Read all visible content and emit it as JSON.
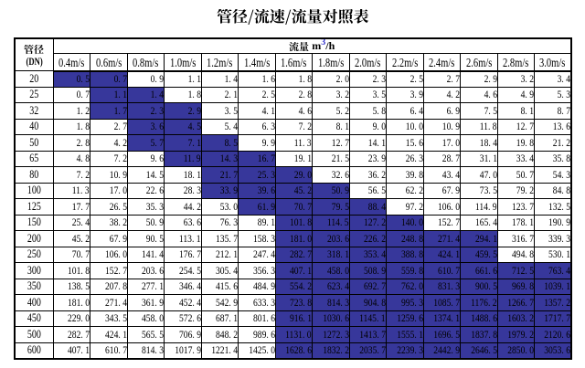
{
  "title": "管径/流速/流量对照表",
  "colors": {
    "highlight": "#37379B",
    "grid": "#000000",
    "text": "#000000",
    "background": "#FFFFFF",
    "flow_sup_blue": "#3333CC"
  },
  "header": {
    "pipe_label": "管径",
    "pipe_sub": "(DN)",
    "flow_label": "流量",
    "flow_unit_base": "m",
    "flow_unit_sup": "3",
    "flow_unit_rest": "/h",
    "velocity_columns": [
      "0.4m/s",
      "0.6m/s",
      "0.8m/s",
      "1.0m/s",
      "1.2m/s",
      "1.4m/s",
      "1.6m/s",
      "1.8m/s",
      "2.0m/s",
      "2.2m/s",
      "2.4m/s",
      "2.6m/s",
      "2.8m/s",
      "3.0m/s"
    ]
  },
  "table": {
    "rows": [
      {
        "dn": "20",
        "values": [
          "0.5",
          "0.7",
          "0.9",
          "1.1",
          "1.4",
          "1.6",
          "1.8",
          "2.0",
          "2.3",
          "2.5",
          "2.7",
          "2.9",
          "3.2",
          "3.4"
        ],
        "highlight": [
          0,
          1
        ]
      },
      {
        "dn": "25",
        "values": [
          "0.7",
          "1.1",
          "1.4",
          "1.8",
          "2.1",
          "2.5",
          "2.8",
          "3.2",
          "3.5",
          "3.9",
          "4.2",
          "4.6",
          "4.9",
          "5.3"
        ],
        "highlight": [
          1,
          2
        ]
      },
      {
        "dn": "32",
        "values": [
          "1.2",
          "1.7",
          "2.3",
          "2.9",
          "3.5",
          "4.1",
          "4.6",
          "5.2",
          "5.8",
          "6.4",
          "6.9",
          "7.5",
          "8.1",
          "8.7"
        ],
        "highlight": [
          1,
          3
        ]
      },
      {
        "dn": "40",
        "values": [
          "1.8",
          "2.7",
          "3.6",
          "4.5",
          "5.4",
          "6.3",
          "7.2",
          "8.1",
          "9.0",
          "10.0",
          "10.9",
          "11.8",
          "12.7",
          "13.6"
        ],
        "highlight": [
          2,
          3
        ]
      },
      {
        "dn": "50",
        "values": [
          "2.8",
          "4.2",
          "5.7",
          "7.1",
          "8.5",
          "9.9",
          "11.3",
          "12.7",
          "14.1",
          "15.6",
          "17.0",
          "18.4",
          "19.8",
          "21.2"
        ],
        "highlight": [
          2,
          4
        ]
      },
      {
        "dn": "65",
        "values": [
          "4.8",
          "7.2",
          "9.6",
          "11.9",
          "14.3",
          "16.7",
          "19.1",
          "21.5",
          "23.9",
          "26.3",
          "28.7",
          "31.1",
          "33.4",
          "35.8"
        ],
        "highlight": [
          3,
          5
        ]
      },
      {
        "dn": "80",
        "values": [
          "7.2",
          "10.9",
          "14.5",
          "18.1",
          "21.7",
          "25.3",
          "29.0",
          "32.6",
          "36.2",
          "39.8",
          "43.4",
          "47.0",
          "50.7",
          "54.3"
        ],
        "highlight": [
          4,
          6
        ]
      },
      {
        "dn": "100",
        "values": [
          "11.3",
          "17.0",
          "22.6",
          "28.3",
          "33.9",
          "39.6",
          "45.2",
          "50.9",
          "56.5",
          "62.2",
          "67.9",
          "73.5",
          "79.2",
          "84.8"
        ],
        "highlight": [
          4,
          7
        ]
      },
      {
        "dn": "125",
        "values": [
          "17.7",
          "26.5",
          "35.3",
          "44.2",
          "53.0",
          "61.9",
          "70.7",
          "79.5",
          "88.4",
          "97.2",
          "106.0",
          "114.9",
          "123.7",
          "132.5"
        ],
        "highlight": [
          5,
          8
        ]
      },
      {
        "dn": "150",
        "values": [
          "25.4",
          "38.2",
          "50.9",
          "63.6",
          "76.3",
          "89.1",
          "101.8",
          "114.5",
          "127.2",
          "140.0",
          "152.7",
          "165.4",
          "178.1",
          "190.9"
        ],
        "highlight": [
          6,
          9
        ]
      },
      {
        "dn": "200",
        "values": [
          "45.2",
          "67.9",
          "90.5",
          "113.1",
          "135.7",
          "158.3",
          "181.0",
          "203.6",
          "226.2",
          "248.8",
          "271.4",
          "294.1",
          "316.7",
          "339.3"
        ],
        "highlight": [
          6,
          11
        ]
      },
      {
        "dn": "250",
        "values": [
          "70.7",
          "106.0",
          "141.4",
          "176.7",
          "212.1",
          "247.4",
          "282.7",
          "318.1",
          "353.4",
          "388.8",
          "424.1",
          "459.5",
          "494.8",
          "530.1"
        ],
        "highlight": [
          6,
          11
        ]
      },
      {
        "dn": "300",
        "values": [
          "101.8",
          "152.7",
          "203.6",
          "254.5",
          "305.4",
          "356.3",
          "407.1",
          "458.0",
          "508.9",
          "559.8",
          "610.7",
          "661.6",
          "712.5",
          "763.4"
        ],
        "highlight": [
          6,
          13
        ]
      },
      {
        "dn": "350",
        "values": [
          "138.5",
          "207.8",
          "277.1",
          "346.4",
          "415.6",
          "484.9",
          "554.2",
          "623.4",
          "692.7",
          "762.0",
          "831.3",
          "900.5",
          "969.8",
          "1039.1"
        ],
        "highlight": [
          6,
          13
        ]
      },
      {
        "dn": "400",
        "values": [
          "181.0",
          "271.4",
          "361.9",
          "452.4",
          "542.9",
          "633.3",
          "723.8",
          "814.3",
          "904.8",
          "995.3",
          "1085.7",
          "1176.2",
          "1266.7",
          "1357.2"
        ],
        "highlight": [
          6,
          13
        ]
      },
      {
        "dn": "450",
        "values": [
          "229.0",
          "343.5",
          "458.0",
          "572.6",
          "687.1",
          "801.6",
          "916.1",
          "1030.6",
          "1145.1",
          "1259.6",
          "1374.1",
          "1488.6",
          "1603.2",
          "1717.7"
        ],
        "highlight": [
          6,
          13
        ]
      },
      {
        "dn": "500",
        "values": [
          "282.7",
          "424.1",
          "565.5",
          "706.9",
          "848.2",
          "989.6",
          "1131.0",
          "1272.3",
          "1413.7",
          "1555.1",
          "1696.5",
          "1837.8",
          "1979.2",
          "2120.6"
        ],
        "highlight": [
          6,
          13
        ]
      },
      {
        "dn": "600",
        "values": [
          "407.1",
          "610.7",
          "814.3",
          "1017.9",
          "1221.4",
          "1425.0",
          "1628.6",
          "1832.2",
          "2035.7",
          "2239.3",
          "2442.9",
          "2646.5",
          "2850.0",
          "3053.6"
        ],
        "highlight": [
          6,
          13
        ]
      }
    ]
  }
}
